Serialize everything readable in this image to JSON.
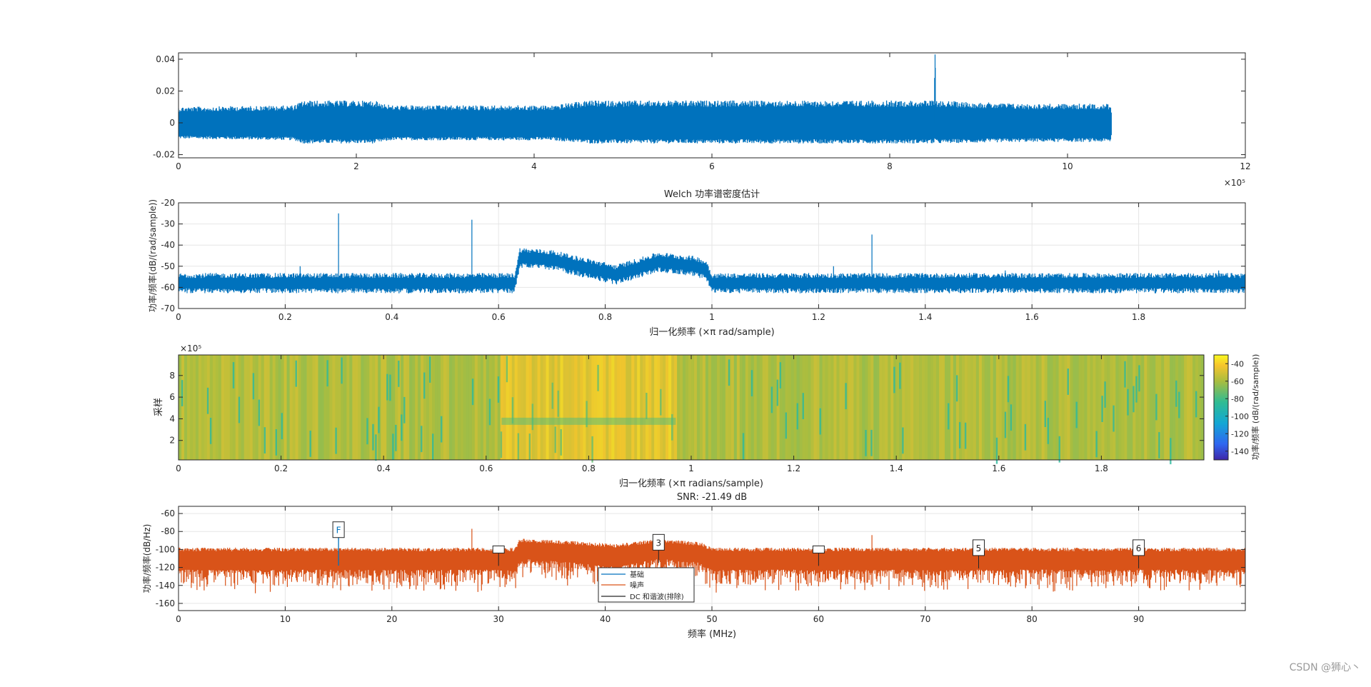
{
  "watermark": "CSDN @狮心丶",
  "colors": {
    "signal": "#0072BD",
    "noise": "#D95319",
    "axis": "#262626",
    "grid": "#e6e6e6"
  },
  "chart_data": [
    {
      "type": "line",
      "title": "",
      "xlabel": "",
      "ylabel": "",
      "xlim": [
        0,
        1200000
      ],
      "ylim": [
        -0.022,
        0.044
      ],
      "x_ticks": [
        "0",
        "2",
        "4",
        "6",
        "8",
        "10",
        "12"
      ],
      "x_exponent": "×10⁵",
      "y_ticks": [
        "-0.02",
        "0",
        "0.02",
        "0.04"
      ],
      "grid": false,
      "series": [
        {
          "color": "#0072BD",
          "x": [
            0,
            130000,
            140000,
            220000,
            240000,
            420000,
            460000,
            700000,
            850000,
            851000,
            852000,
            950000,
            1049000,
            1050000
          ],
          "y_upper": [
            0.01,
            0.011,
            0.014,
            0.014,
            0.011,
            0.011,
            0.014,
            0.014,
            0.014,
            0.043,
            0.014,
            0.012,
            0.012,
            0.0
          ],
          "y_lower": [
            -0.01,
            -0.011,
            -0.013,
            -0.013,
            -0.011,
            -0.011,
            -0.013,
            -0.013,
            -0.013,
            -0.013,
            -0.013,
            -0.012,
            -0.012,
            0.0
          ]
        }
      ]
    },
    {
      "type": "line",
      "title": "Welch 功率谱密度估计",
      "xlabel": "归一化频率  (×π rad/sample)",
      "ylabel": "功率/频率(dB/(rad/sample))",
      "xlim": [
        0,
        2
      ],
      "ylim": [
        -70,
        -20
      ],
      "x_ticks": [
        "0",
        "0.2",
        "0.4",
        "0.6",
        "0.8",
        "1",
        "1.2",
        "1.4",
        "1.6",
        "1.8"
      ],
      "y_ticks": [
        "-70",
        "-60",
        "-50",
        "-40",
        "-30",
        "-20"
      ],
      "grid": true,
      "series": [
        {
          "color": "#0072BD",
          "x": [
            0,
            0.63,
            0.64,
            0.7,
            0.75,
            0.82,
            0.9,
            0.97,
            0.99,
            1.0,
            2.0
          ],
          "y_center": [
            -58,
            -58,
            -46,
            -47,
            -50,
            -54,
            -48,
            -50,
            -52,
            -58,
            -58
          ],
          "y_band": 4,
          "spikes": [
            [
              0.228,
              -50
            ],
            [
              0.3,
              -25
            ],
            [
              0.55,
              -28
            ],
            [
              1.228,
              -50
            ],
            [
              1.3,
              -35
            ],
            [
              1.55,
              -52
            ],
            [
              1.95,
              -52
            ]
          ]
        }
      ]
    },
    {
      "type": "heatmap",
      "title": "",
      "xlabel": "归一化频率  (×π radians/sample)",
      "ylabel": "采样",
      "xlim": [
        0,
        2
      ],
      "ylim": [
        0.2,
        9.9
      ],
      "x_ticks": [
        "0",
        "0.2",
        "0.4",
        "0.6",
        "0.8",
        "1",
        "1.2",
        "1.4",
        "1.6",
        "1.8"
      ],
      "y_ticks": [
        "2",
        "4",
        "6",
        "8"
      ],
      "y_exponent": "×10⁵",
      "colorbar_label": "功率/频率 (dB/(rad/sample))",
      "colorbar_ticks": [
        "-40",
        "-60",
        "-80",
        "-100",
        "-120",
        "-140"
      ],
      "clim": [
        -150,
        -30
      ],
      "band_regions": [
        {
          "x": [
            0.63,
            0.97
          ],
          "level": -44
        },
        {
          "x": [
            0,
            0.63
          ],
          "level": -58
        },
        {
          "x": [
            0.97,
            2.0
          ],
          "level": -58
        }
      ]
    },
    {
      "type": "line",
      "title": "SNR: -21.49 dB",
      "xlabel": "频率 (MHz)",
      "ylabel": "功率/频率(dB/Hz)",
      "xlim": [
        0,
        100
      ],
      "ylim": [
        -168,
        -52
      ],
      "x_ticks": [
        "0",
        "10",
        "20",
        "30",
        "40",
        "50",
        "60",
        "70",
        "80",
        "90"
      ],
      "y_ticks": [
        "-160",
        "-140",
        "-120",
        "-100",
        "-80",
        "-60"
      ],
      "grid": true,
      "legend": [
        "基础",
        "噪声",
        "DC 和谐波(排除)"
      ],
      "legend_location": "bottom-center",
      "series": [
        {
          "name": "噪声",
          "color": "#D95319",
          "x": [
            0,
            31.5,
            32.0,
            36,
            41,
            45,
            49,
            50,
            100
          ],
          "y_upper": [
            -100,
            -100,
            -90,
            -92,
            -96,
            -90,
            -94,
            -100,
            -100
          ],
          "y_lower": [
            -150,
            -150,
            -135,
            -140,
            -148,
            -135,
            -140,
            -150,
            -150
          ],
          "spikes": [
            [
              27.5,
              -77
            ],
            [
              65,
              -84
            ]
          ]
        },
        {
          "name": "基础",
          "color": "#0072BD",
          "x": [
            15,
            15
          ],
          "y": [
            -118,
            -82
          ]
        }
      ],
      "markers": [
        {
          "label": "F",
          "x": 15,
          "y": -78
        },
        {
          "label": "",
          "x": 30,
          "y": -100
        },
        {
          "label": "3",
          "x": 45,
          "y": -92
        },
        {
          "label": "",
          "x": 60,
          "y": -100
        },
        {
          "label": "5",
          "x": 75,
          "y": -98
        },
        {
          "label": "6",
          "x": 90,
          "y": -98
        }
      ]
    }
  ]
}
